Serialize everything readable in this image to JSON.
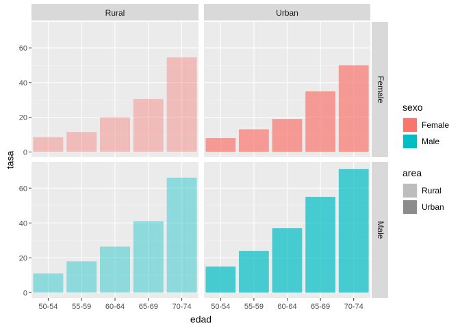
{
  "chart_data": {
    "type": "bar",
    "facet_cols": [
      "Rural",
      "Urban"
    ],
    "facet_rows": [
      "Female",
      "Male"
    ],
    "categories": [
      "50-54",
      "55-59",
      "60-64",
      "65-69",
      "70-74"
    ],
    "panels": [
      {
        "col": "Rural",
        "row": "Female",
        "sexo": "Female",
        "area": "Rural",
        "values": [
          8.5,
          11.5,
          20,
          30.5,
          54.5
        ]
      },
      {
        "col": "Urban",
        "row": "Female",
        "sexo": "Female",
        "area": "Urban",
        "values": [
          8,
          13,
          19,
          35,
          50
        ]
      },
      {
        "col": "Rural",
        "row": "Male",
        "sexo": "Male",
        "area": "Rural",
        "values": [
          11,
          18,
          26.5,
          41,
          66
        ]
      },
      {
        "col": "Urban",
        "row": "Male",
        "sexo": "Male",
        "area": "Urban",
        "values": [
          15,
          24,
          37,
          55,
          71
        ]
      }
    ],
    "xlabel": "edad",
    "ylabel": "tasa",
    "ylim": [
      -3,
      75
    ],
    "yticks": [
      0,
      20,
      40,
      60
    ],
    "grid": true,
    "legend_position": "right",
    "legends": [
      {
        "title": "sexo",
        "items": [
          {
            "label": "Female",
            "color": "#F8766D"
          },
          {
            "label": "Male",
            "color": "#00BFC4"
          }
        ]
      },
      {
        "title": "area",
        "items": [
          {
            "label": "Rural",
            "color": "#bdbdbd"
          },
          {
            "label": "Urban",
            "color": "#8c8c8c"
          }
        ]
      }
    ],
    "alpha": {
      "Rural": 0.4,
      "Urban": 0.7
    },
    "colors": {
      "Female": "#F8766D",
      "Male": "#00BFC4",
      "panel_bg": "#EBEBEB",
      "strip_bg": "#D9D9D9",
      "grid": "#ffffff"
    }
  }
}
